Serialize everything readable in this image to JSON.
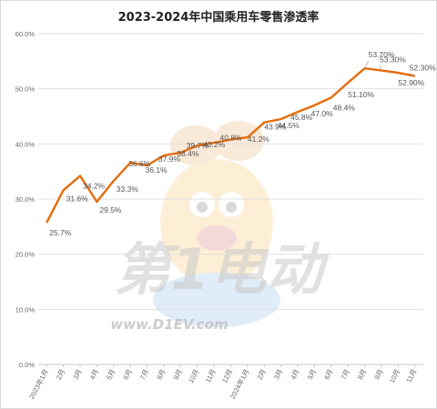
{
  "colors": {
    "line": "#e46c0a",
    "grid": "#e0e0e0",
    "axis": "#c8c8c8",
    "text": "#555555"
  },
  "watermark": {
    "brand": "第1电动",
    "url": "www.D1EV.com"
  },
  "chart_data": {
    "type": "line",
    "title": "2023-2024年中国乘用车零售渗透率",
    "xlabel": "",
    "ylabel": "",
    "ylim": [
      0,
      60
    ],
    "yticks": [
      "0.0%",
      "10.0%",
      "20.0%",
      "30.0%",
      "40.0%",
      "50.0%",
      "60.0%"
    ],
    "grid": true,
    "legend": "none",
    "categories": [
      "2023年1月",
      "2月",
      "3月",
      "4月",
      "5月",
      "6月",
      "7月",
      "8月",
      "9月",
      "10月",
      "11月",
      "12月",
      "2024年1月",
      "2月",
      "3月",
      "4月",
      "5月",
      "6月",
      "7月",
      "8月",
      "9月",
      "10月",
      "11月"
    ],
    "series": [
      {
        "values": [
          25.7,
          31.6,
          34.2,
          29.5,
          33.3,
          36.6,
          36.1,
          37.9,
          38.4,
          39.7,
          40.2,
          40.8,
          41.2,
          43.9,
          44.5,
          45.8,
          47.0,
          48.4,
          51.1,
          53.7,
          53.3,
          52.9,
          52.3
        ],
        "labels": [
          "25.7%",
          "31.6%",
          "34.2%",
          "29.5%",
          "33.3%",
          "36.6%",
          "36.1%",
          "37.9%",
          "38.4%",
          "39.7%",
          "40.2%",
          "40.8%",
          "41.2%",
          "43.9%",
          "44.5%",
          "45.8%",
          "47.0%",
          "48.4%",
          "51.10%",
          "53.70%",
          "53.30%",
          "52.90%",
          "52.30%"
        ]
      }
    ]
  }
}
